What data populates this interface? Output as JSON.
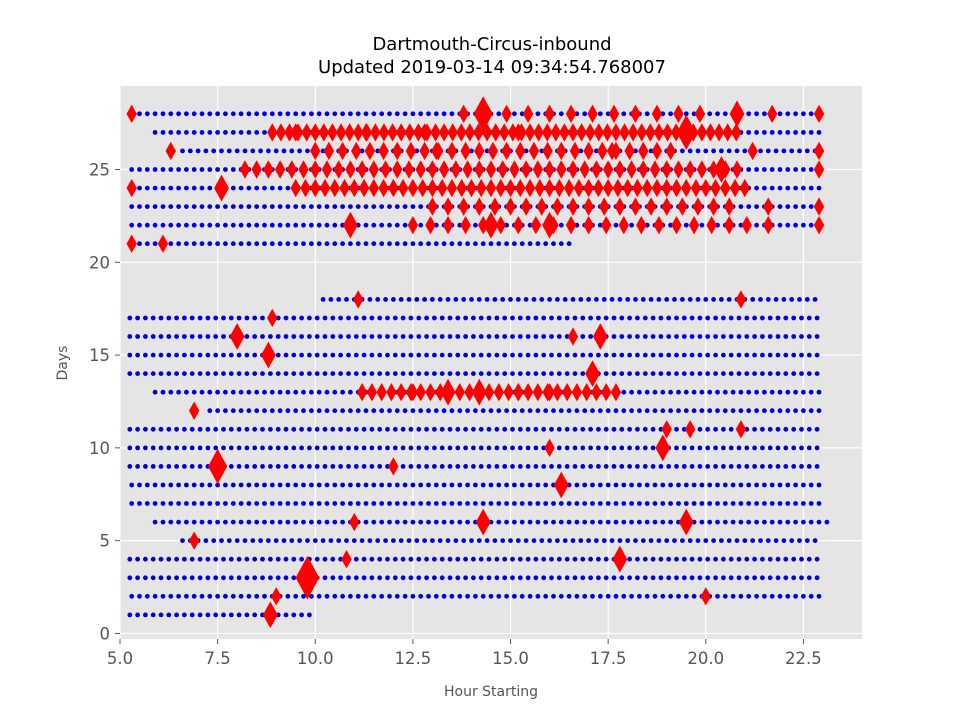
{
  "chart_data": {
    "type": "scatter",
    "title": "Dartmouth-Circus-inbound",
    "subtitle": "Updated 2019-03-14 09:34:54.768007",
    "xlabel": "Hour Starting",
    "ylabel": "Days",
    "xlim": [
      5.0,
      24.0
    ],
    "ylim": [
      -0.3,
      29.5
    ],
    "grid": true,
    "x_ticks": [
      "5.0",
      "7.5",
      "10.0",
      "12.5",
      "15.0",
      "17.5",
      "20.0",
      "22.5"
    ],
    "y_ticks": [
      "0",
      "5",
      "10",
      "15",
      "20",
      "25"
    ],
    "colors": {
      "background": "#e5e5e5",
      "grid": "#ffffff",
      "points": "#0000dd",
      "markers": "#ff0000",
      "axis_text": "#555555"
    },
    "series": [
      {
        "marker": "dot",
        "color": "#0000dd",
        "rows": [
          {
            "day": 1,
            "start": 5.25,
            "end": 9.9
          },
          {
            "day": 2,
            "start": 5.3,
            "end": 22.9
          },
          {
            "day": 3,
            "start": 5.25,
            "end": 22.9
          },
          {
            "day": 4,
            "start": 5.25,
            "end": 22.9
          },
          {
            "day": 5,
            "start": 6.6,
            "end": 22.9
          },
          {
            "day": 6,
            "start": 5.9,
            "end": 23.1
          },
          {
            "day": 7,
            "start": 5.3,
            "end": 22.9
          },
          {
            "day": 8,
            "start": 5.3,
            "end": 22.9
          },
          {
            "day": 9,
            "start": 5.25,
            "end": 22.9
          },
          {
            "day": 10,
            "start": 5.25,
            "end": 22.9
          },
          {
            "day": 11,
            "start": 5.25,
            "end": 22.9
          },
          {
            "day": 12,
            "start": 7.3,
            "end": 22.9
          },
          {
            "day": 13,
            "start": 5.9,
            "end": 22.9
          },
          {
            "day": 14,
            "start": 5.25,
            "end": 22.9
          },
          {
            "day": 15,
            "start": 5.25,
            "end": 22.9
          },
          {
            "day": 16,
            "start": 5.25,
            "end": 22.9
          },
          {
            "day": 17,
            "start": 5.25,
            "end": 22.9
          },
          {
            "day": 18,
            "start": 10.2,
            "end": 22.9
          },
          {
            "day": 21,
            "start": 5.3,
            "end": 16.5
          },
          {
            "day": 22,
            "start": 5.3,
            "end": 22.9
          },
          {
            "day": 23,
            "start": 5.3,
            "end": 22.9
          },
          {
            "day": 24,
            "start": 5.3,
            "end": 22.9
          },
          {
            "day": 25,
            "start": 5.3,
            "end": 22.9
          },
          {
            "day": 26,
            "start": 6.6,
            "end": 22.9
          },
          {
            "day": 27,
            "start": 5.9,
            "end": 22.9
          },
          {
            "day": 28,
            "start": 5.3,
            "end": 22.9
          }
        ]
      },
      {
        "marker": "diamond",
        "color": "#ff0000",
        "points": [
          [
            8.85,
            1,
            2
          ],
          [
            9.0,
            2,
            1
          ],
          [
            20.0,
            2,
            1
          ],
          [
            9.8,
            3,
            4
          ],
          [
            17.8,
            4,
            2
          ],
          [
            6.9,
            5,
            1
          ],
          [
            14.3,
            6,
            2
          ],
          [
            19.5,
            6,
            2
          ],
          [
            11.0,
            6,
            1
          ],
          [
            10.8,
            4,
            1
          ],
          [
            7.5,
            9,
            3
          ],
          [
            16.3,
            8,
            2
          ],
          [
            18.9,
            10,
            2
          ],
          [
            16.0,
            10,
            1
          ],
          [
            12.0,
            9,
            1
          ],
          [
            6.9,
            12,
            1
          ],
          [
            20.9,
            11,
            1
          ],
          [
            19.0,
            11,
            1
          ],
          [
            19.6,
            11,
            1
          ],
          [
            14.2,
            13,
            2
          ],
          [
            13.4,
            13,
            2
          ],
          [
            12.5,
            13,
            1
          ],
          [
            15.2,
            13,
            1
          ],
          [
            16.0,
            13,
            1
          ],
          [
            17.1,
            14,
            2
          ],
          [
            17.3,
            16,
            2
          ],
          [
            8.8,
            15,
            2
          ],
          [
            8.0,
            16,
            2
          ],
          [
            8.9,
            17,
            1
          ],
          [
            16.6,
            16,
            1
          ],
          [
            20.9,
            18,
            1
          ],
          [
            11.1,
            18,
            1
          ],
          [
            5.3,
            21,
            1
          ],
          [
            6.1,
            21,
            1
          ],
          [
            10.9,
            22,
            2
          ],
          [
            14.5,
            22,
            2
          ],
          [
            16.0,
            22,
            2
          ],
          [
            21.6,
            22,
            1
          ],
          [
            22.9,
            22,
            1
          ],
          [
            7.6,
            24,
            2
          ],
          [
            20.4,
            25,
            2
          ],
          [
            5.3,
            24,
            1
          ],
          [
            22.9,
            23,
            1
          ],
          [
            21.6,
            23,
            1
          ],
          [
            14.3,
            28,
            3
          ],
          [
            19.5,
            27,
            3
          ],
          [
            20.8,
            28,
            2
          ],
          [
            21.7,
            28,
            1
          ],
          [
            21.2,
            26,
            1
          ],
          [
            15.2,
            27,
            1
          ],
          [
            12.8,
            27,
            1
          ],
          [
            11.3,
            27,
            1
          ],
          [
            9.5,
            27,
            1
          ],
          [
            17.6,
            26,
            1
          ],
          [
            13.1,
            26,
            1
          ],
          [
            6.3,
            26,
            1
          ],
          [
            5.3,
            28,
            1
          ],
          [
            22.9,
            28,
            1
          ],
          [
            22.9,
            26,
            1
          ],
          [
            22.9,
            25,
            1
          ]
        ],
        "bands": [
          {
            "day": 27,
            "start": 8.9,
            "end": 20.9,
            "step": 0.22
          },
          {
            "day": 26,
            "start": 10.0,
            "end": 19.1,
            "step": 0.35
          },
          {
            "day": 25,
            "start": 8.2,
            "end": 20.9,
            "step": 0.3
          },
          {
            "day": 24,
            "start": 9.5,
            "end": 21.1,
            "step": 0.25
          },
          {
            "day": 23,
            "start": 13.0,
            "end": 20.8,
            "step": 0.4
          },
          {
            "day": 22,
            "start": 12.5,
            "end": 21.3,
            "step": 0.45
          },
          {
            "day": 13,
            "start": 11.2,
            "end": 17.9,
            "step": 0.25
          },
          {
            "day": 28,
            "start": 13.8,
            "end": 20.1,
            "step": 0.55
          }
        ]
      }
    ]
  }
}
